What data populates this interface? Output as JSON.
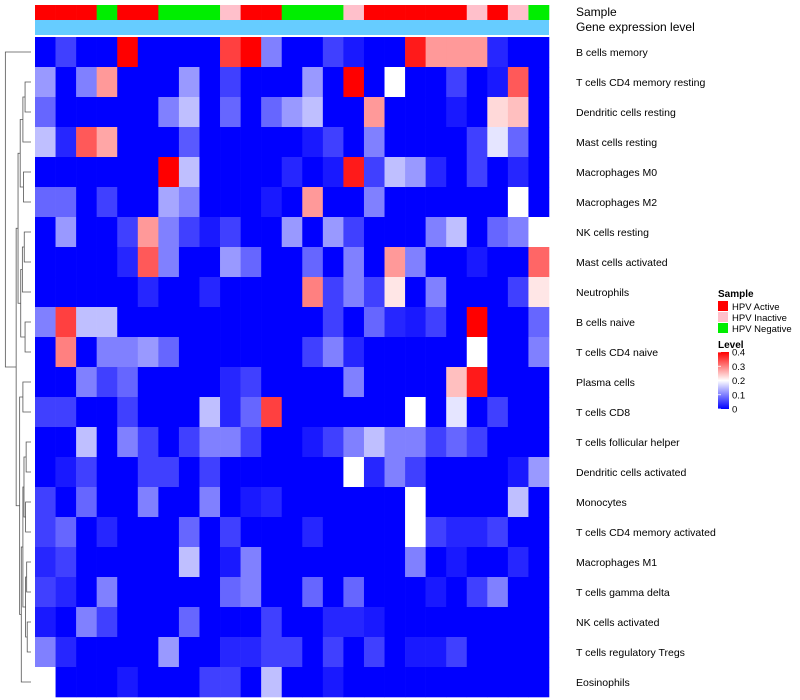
{
  "chart_data": {
    "type": "heatmap",
    "annotation_rows": [
      "Sample",
      "Gene expression level"
    ],
    "sample_groups": [
      "Active",
      "Active",
      "Active",
      "Negative",
      "Active",
      "Active",
      "Negative",
      "Negative",
      "Negative",
      "Inactive",
      "Active",
      "Active",
      "Negative",
      "Negative",
      "Negative",
      "Inactive",
      "Active",
      "Active",
      "Active",
      "Active",
      "Active",
      "Inactive",
      "Active",
      "Inactive",
      "Negative"
    ],
    "rows": [
      "B cells memory",
      "T cells CD4 memory resting",
      "Dendritic cells resting",
      "Mast cells resting",
      "Macrophages M0",
      "Macrophages M2",
      "NK cells resting",
      "Mast cells activated",
      "Neutrophils",
      "B cells naive",
      "T cells CD4 naive",
      "Plasma cells",
      "T cells CD8",
      "T cells follicular helper",
      "Dendritic cells activated",
      "Monocytes",
      "T cells CD4 memory activated",
      "Macrophages M1",
      "T cells gamma delta",
      "NK cells activated",
      "T cells regulatory  Tregs",
      "Eosinophils"
    ],
    "values": [
      [
        0.0,
        0.05,
        0.0,
        0.0,
        0.4,
        0.0,
        0.0,
        0.0,
        0.0,
        0.35,
        0.4,
        0.1,
        0.0,
        0.0,
        0.05,
        0.02,
        0.0,
        0.0,
        0.38,
        0.28,
        0.28,
        0.28,
        0.03,
        0.0,
        0.0
      ],
      [
        0.12,
        0.0,
        0.1,
        0.28,
        0.0,
        0.0,
        0.0,
        0.12,
        0.0,
        0.05,
        0.0,
        0.0,
        0.0,
        0.12,
        0.0,
        0.4,
        0.0,
        0.2,
        0.0,
        0.0,
        0.05,
        0.0,
        0.02,
        0.33,
        0.0
      ],
      [
        0.08,
        0.0,
        0.0,
        0.0,
        0.0,
        0.0,
        0.1,
        0.15,
        0.0,
        0.08,
        0.0,
        0.08,
        0.12,
        0.15,
        0.0,
        0.0,
        0.28,
        0.0,
        0.0,
        0.0,
        0.02,
        0.0,
        0.23,
        0.25,
        0.0
      ],
      [
        0.15,
        0.03,
        0.33,
        0.27,
        0.0,
        0.0,
        0.0,
        0.07,
        0.0,
        0.0,
        0.0,
        0.0,
        0.0,
        0.02,
        0.05,
        0.0,
        0.1,
        0.0,
        0.0,
        0.0,
        0.0,
        0.05,
        0.18,
        0.08,
        0.0
      ],
      [
        0.0,
        0.0,
        0.0,
        0.0,
        0.0,
        0.0,
        0.4,
        0.15,
        0.0,
        0.0,
        0.0,
        0.0,
        0.03,
        0.0,
        0.02,
        0.38,
        0.05,
        0.15,
        0.12,
        0.03,
        0.0,
        0.05,
        0.0,
        0.03,
        0.0
      ],
      [
        0.08,
        0.08,
        0.0,
        0.05,
        0.0,
        0.0,
        0.13,
        0.1,
        0.0,
        0.0,
        0.0,
        0.02,
        0.0,
        0.28,
        0.0,
        0.0,
        0.1,
        0.0,
        0.0,
        0.0,
        0.0,
        0.0,
        0.0,
        0.2,
        0.0
      ],
      [
        0.0,
        0.12,
        0.0,
        0.0,
        0.05,
        0.28,
        0.1,
        0.05,
        0.02,
        0.05,
        0.0,
        0.0,
        0.12,
        0.0,
        0.12,
        0.05,
        0.0,
        0.0,
        0.0,
        0.1,
        0.15,
        0.0,
        0.08,
        0.1,
        0.2
      ],
      [
        0.0,
        0.0,
        0.0,
        0.0,
        0.03,
        0.33,
        0.1,
        0.0,
        0.0,
        0.12,
        0.08,
        0.0,
        0.0,
        0.08,
        0.0,
        0.1,
        0.0,
        0.28,
        0.1,
        0.0,
        0.0,
        0.02,
        0.0,
        0.0,
        0.32
      ],
      [
        0.0,
        0.0,
        0.0,
        0.0,
        0.0,
        0.03,
        0.0,
        0.0,
        0.03,
        0.0,
        0.0,
        0.0,
        0.0,
        0.3,
        0.05,
        0.1,
        0.05,
        0.22,
        0.0,
        0.1,
        0.0,
        0.0,
        0.0,
        0.05,
        0.22
      ],
      [
        0.1,
        0.35,
        0.15,
        0.15,
        0.0,
        0.0,
        0.0,
        0.0,
        0.0,
        0.0,
        0.0,
        0.0,
        0.0,
        0.0,
        0.05,
        0.0,
        0.08,
        0.03,
        0.02,
        0.05,
        0.0,
        0.4,
        0.0,
        0.0,
        0.08
      ],
      [
        0.0,
        0.3,
        0.0,
        0.1,
        0.1,
        0.12,
        0.08,
        0.0,
        0.0,
        0.0,
        0.0,
        0.0,
        0.0,
        0.05,
        0.1,
        0.03,
        0.0,
        0.0,
        0.0,
        0.0,
        0.0,
        0.2,
        0.0,
        0.0,
        0.1
      ],
      [
        0.0,
        0.0,
        0.1,
        0.05,
        0.08,
        0.0,
        0.0,
        0.0,
        0.0,
        0.03,
        0.05,
        0.0,
        0.0,
        0.0,
        0.0,
        0.1,
        0.0,
        0.0,
        0.0,
        0.0,
        0.25,
        0.38,
        0.0,
        0.0,
        0.0
      ],
      [
        0.05,
        0.05,
        0.0,
        0.0,
        0.05,
        0.0,
        0.0,
        0.0,
        0.15,
        0.03,
        0.08,
        0.35,
        0.0,
        0.0,
        0.0,
        0.0,
        0.0,
        0.0,
        0.2,
        0.0,
        0.18,
        0.0,
        0.05,
        0.0,
        0.0
      ],
      [
        0.0,
        0.0,
        0.15,
        0.0,
        0.1,
        0.05,
        0.0,
        0.05,
        0.1,
        0.1,
        0.05,
        0.0,
        0.0,
        0.02,
        0.05,
        0.1,
        0.15,
        0.1,
        0.1,
        0.05,
        0.08,
        0.05,
        0.0,
        0.0,
        0.0
      ],
      [
        0.0,
        0.02,
        0.05,
        0.0,
        0.0,
        0.05,
        0.05,
        0.0,
        0.05,
        0.0,
        0.0,
        0.0,
        0.0,
        0.0,
        0.0,
        0.2,
        0.03,
        0.1,
        0.05,
        0.0,
        0.0,
        0.0,
        0.0,
        0.02,
        0.12
      ],
      [
        0.05,
        0.0,
        0.08,
        0.0,
        0.0,
        0.1,
        0.0,
        0.0,
        0.1,
        0.0,
        0.02,
        0.03,
        0.0,
        0.0,
        0.0,
        0.0,
        0.0,
        0.0,
        0.2,
        0.0,
        0.0,
        0.0,
        0.0,
        0.15,
        0.0
      ],
      [
        0.05,
        0.08,
        0.0,
        0.03,
        0.0,
        0.0,
        0.0,
        0.08,
        0.0,
        0.05,
        0.0,
        0.0,
        0.0,
        0.03,
        0.0,
        0.0,
        0.0,
        0.0,
        0.2,
        0.05,
        0.03,
        0.03,
        0.05,
        0.0,
        0.0
      ],
      [
        0.03,
        0.05,
        0.0,
        0.0,
        0.0,
        0.0,
        0.0,
        0.15,
        0.0,
        0.02,
        0.1,
        0.0,
        0.0,
        0.0,
        0.0,
        0.0,
        0.0,
        0.0,
        0.1,
        0.0,
        0.02,
        0.0,
        0.0,
        0.03,
        0.0
      ],
      [
        0.05,
        0.03,
        0.0,
        0.1,
        0.0,
        0.0,
        0.0,
        0.0,
        0.0,
        0.08,
        0.1,
        0.0,
        0.0,
        0.08,
        0.0,
        0.08,
        0.0,
        0.0,
        0.0,
        0.02,
        0.0,
        0.05,
        0.1,
        0.0,
        0.0
      ],
      [
        0.02,
        0.0,
        0.1,
        0.05,
        0.0,
        0.0,
        0.0,
        0.08,
        0.0,
        0.0,
        0.0,
        0.05,
        0.0,
        0.0,
        0.03,
        0.03,
        0.02,
        0.0,
        0.0,
        0.0,
        0.0,
        0.0,
        0.0,
        0.0,
        0.0
      ],
      [
        0.1,
        0.03,
        0.0,
        0.0,
        0.0,
        0.0,
        0.12,
        0.0,
        0.0,
        0.03,
        0.03,
        0.05,
        0.05,
        0.0,
        0.05,
        0.0,
        0.05,
        0.0,
        0.02,
        0.02,
        0.05,
        0.0,
        0.0,
        0.0,
        0.0
      ],
      [
        0.2,
        0.0,
        0.0,
        0.0,
        0.02,
        0.0,
        0.0,
        0.0,
        0.05,
        0.05,
        0.0,
        0.15,
        0.0,
        0.0,
        0.02,
        0.0,
        0.0,
        0.0,
        0.0,
        0.0,
        0.0,
        0.0,
        0.0,
        0.0,
        0.0
      ]
    ],
    "legend_sample": {
      "title": "Sample",
      "entries": [
        {
          "label": "HPV Active",
          "color": "#ff0000"
        },
        {
          "label": "HPV Inactive",
          "color": "#ffc0cb"
        },
        {
          "label": "HPV Negative",
          "color": "#00ee00"
        }
      ]
    },
    "legend_level": {
      "title": "Level",
      "ticks": [
        "0.4",
        "0.3",
        "0.2",
        "0.1",
        "0"
      ],
      "tick_values": [
        0.4,
        0.3,
        0.2,
        0.1,
        0
      ],
      "range": [
        0,
        0.4
      ]
    },
    "colors": {
      "low": "#0000ff",
      "mid": "#ffffff",
      "high": "#ff0000",
      "gene_bar": "#66ccff",
      "Active": "#ff0000",
      "Inactive": "#ffc0cb",
      "Negative": "#00ee00"
    }
  }
}
